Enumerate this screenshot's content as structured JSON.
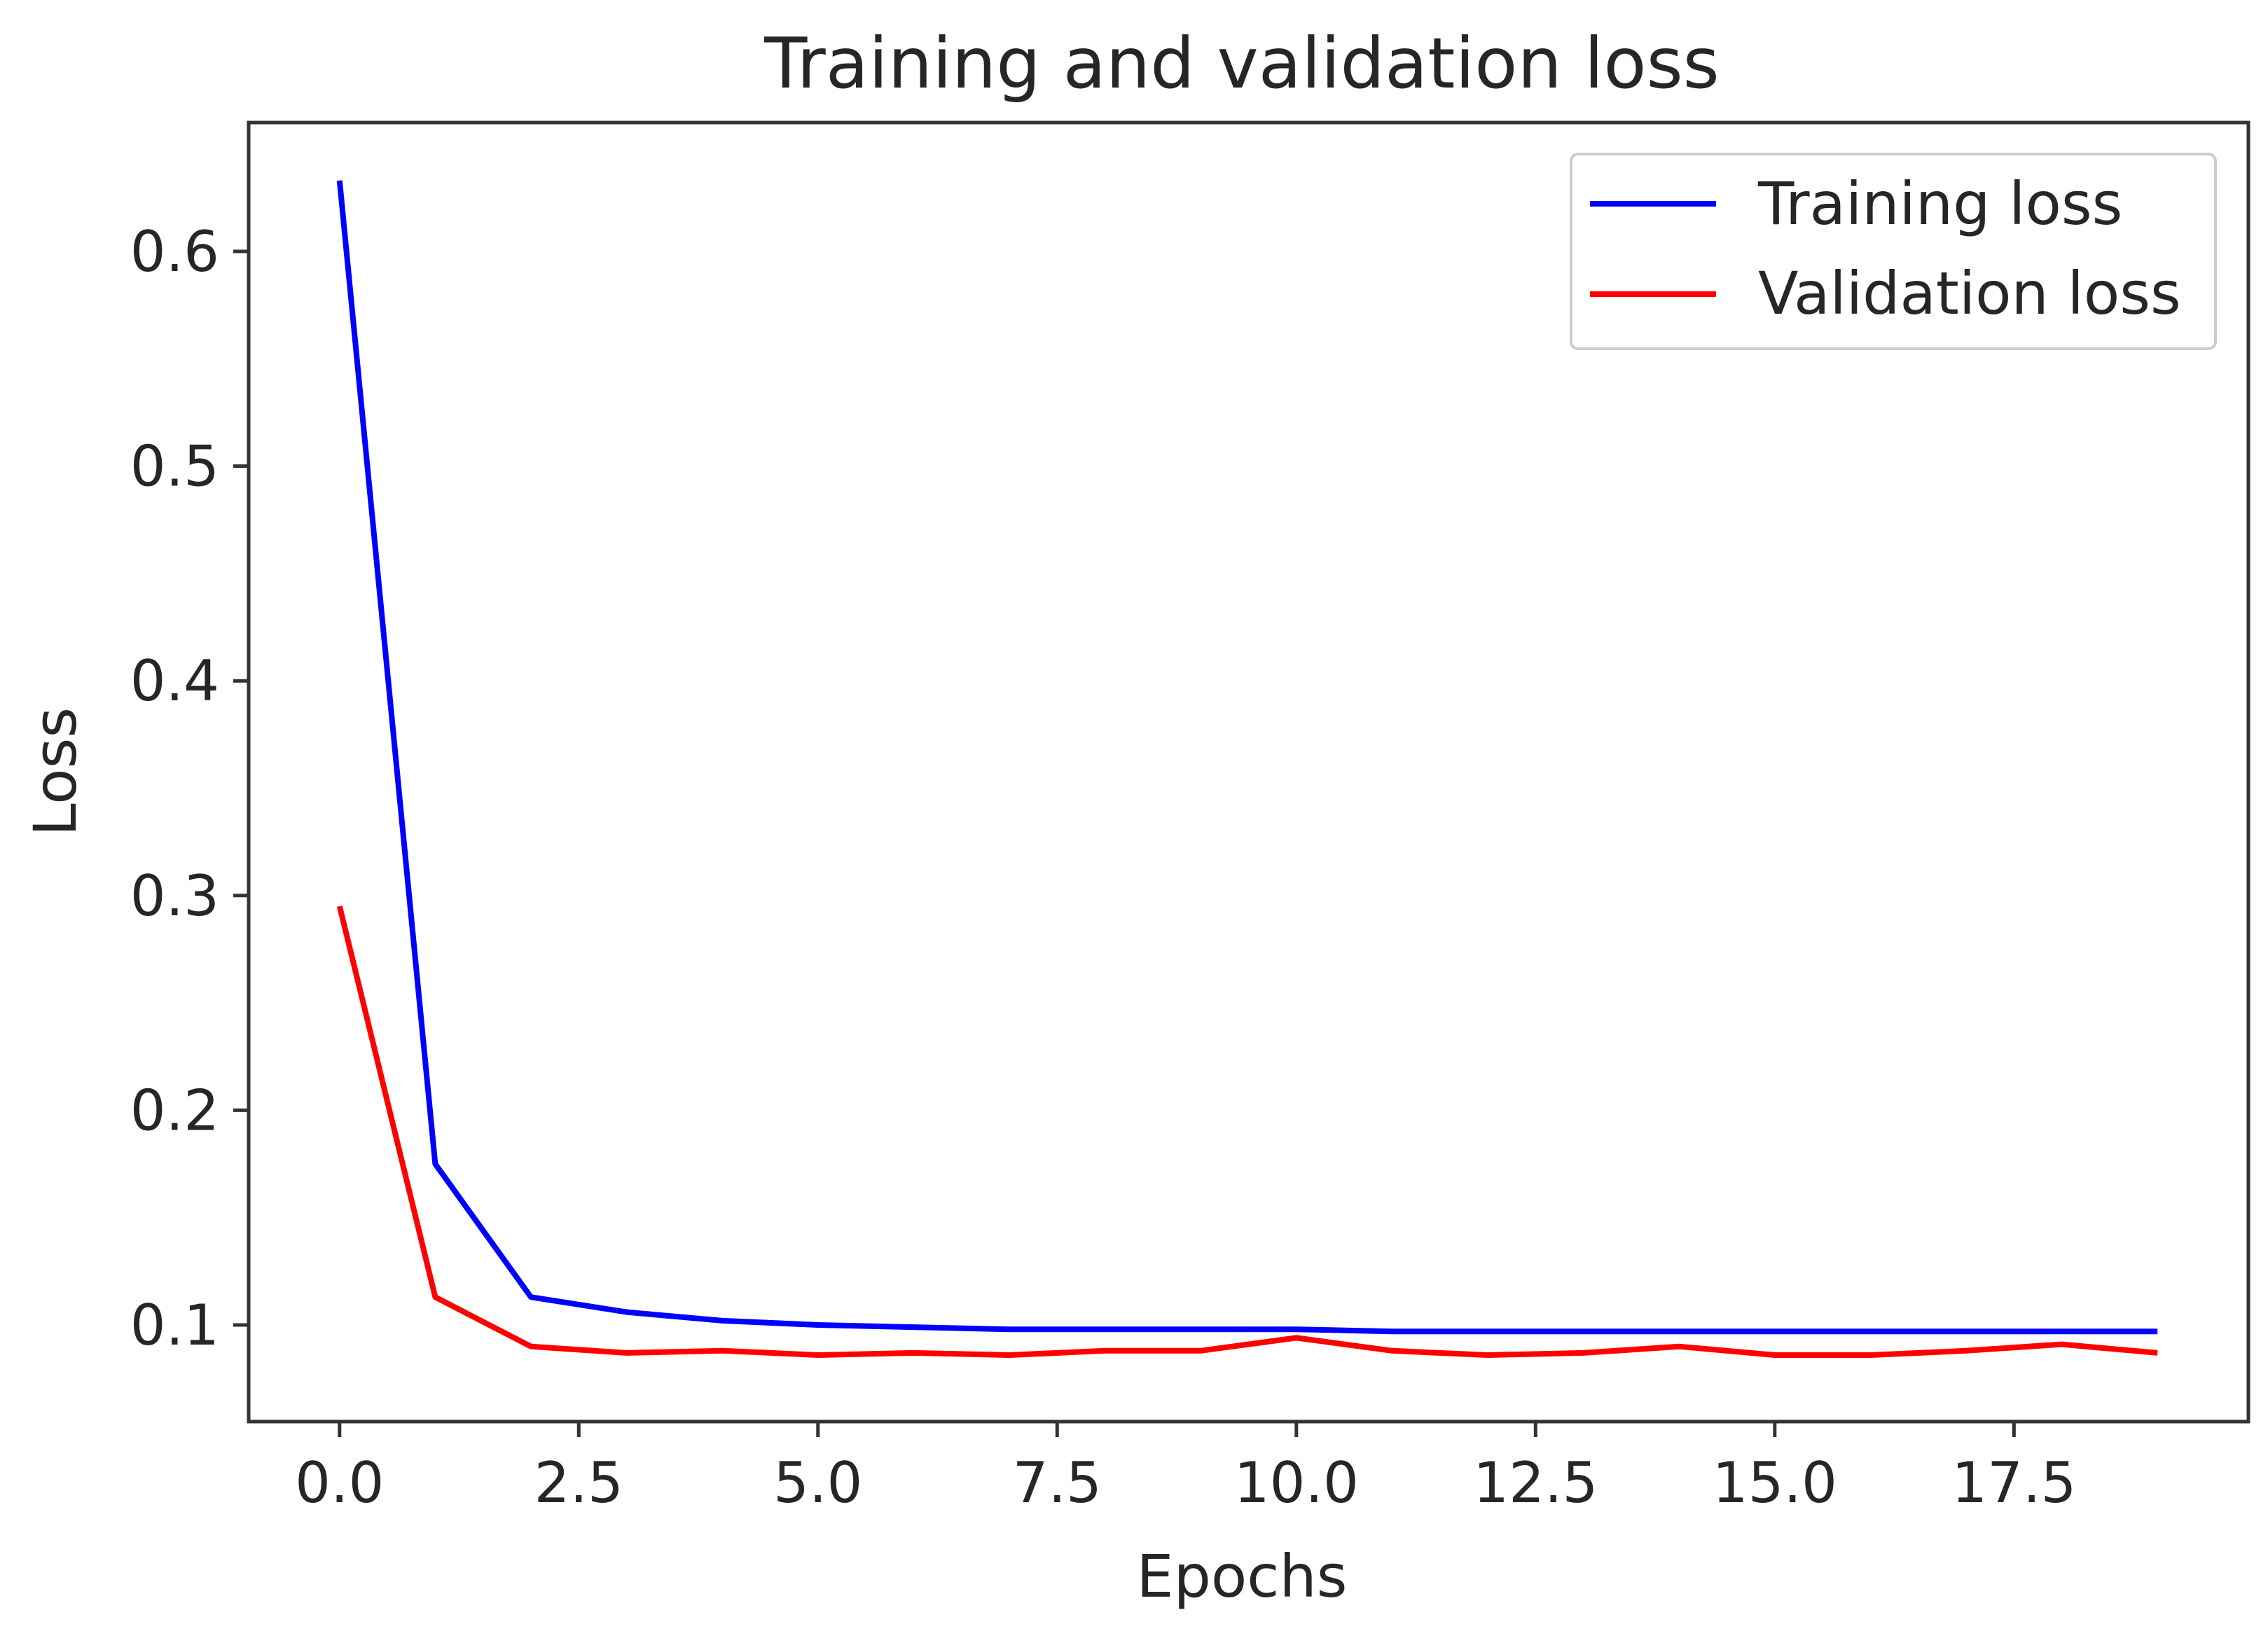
{
  "chart_data": {
    "type": "line",
    "title": "Training and validation loss",
    "xlabel": "Epochs",
    "ylabel": "Loss",
    "xlim": [
      -0.95,
      19.95
    ],
    "ylim": [
      0.055,
      0.66
    ],
    "xticks": [
      0.0,
      2.5,
      5.0,
      7.5,
      10.0,
      12.5,
      15.0,
      17.5
    ],
    "xtick_labels": [
      "0.0",
      "2.5",
      "5.0",
      "7.5",
      "10.0",
      "12.5",
      "15.0",
      "17.5"
    ],
    "yticks": [
      0.1,
      0.2,
      0.3,
      0.4,
      0.5,
      0.6
    ],
    "ytick_labels": [
      "0.1",
      "0.2",
      "0.3",
      "0.4",
      "0.5",
      "0.6"
    ],
    "grid": false,
    "legend_position": "top-right",
    "x": [
      0,
      1,
      2,
      3,
      4,
      5,
      6,
      7,
      8,
      9,
      10,
      11,
      12,
      13,
      14,
      15,
      16,
      17,
      18,
      19
    ],
    "series": [
      {
        "name": "Training loss",
        "color": "#0000ff",
        "values": [
          0.633,
          0.175,
          0.113,
          0.106,
          0.102,
          0.1,
          0.099,
          0.098,
          0.098,
          0.098,
          0.098,
          0.097,
          0.097,
          0.097,
          0.097,
          0.097,
          0.097,
          0.097,
          0.097,
          0.097
        ]
      },
      {
        "name": "Validation loss",
        "color": "#ff0000",
        "values": [
          0.295,
          0.113,
          0.09,
          0.087,
          0.088,
          0.086,
          0.087,
          0.086,
          0.088,
          0.088,
          0.094,
          0.088,
          0.086,
          0.087,
          0.09,
          0.086,
          0.086,
          0.088,
          0.091,
          0.087
        ]
      }
    ]
  }
}
